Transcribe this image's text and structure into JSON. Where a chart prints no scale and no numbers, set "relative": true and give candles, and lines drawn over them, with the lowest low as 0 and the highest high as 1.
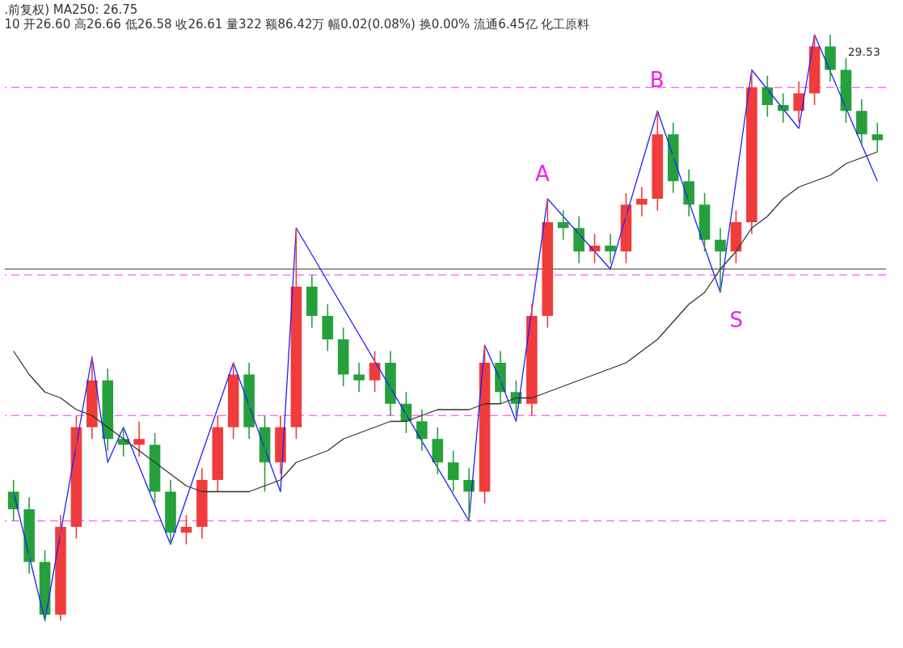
{
  "chart_data": {
    "type": "candlestick",
    "relative": true,
    "title": ".前复权) MA250: 26.75",
    "subtitle": "10 开26.60 高26.66 低26.58 收26.61 量322 额86.42万 幅0.02(0.08%) 换0.00% 流通6.45亿 化工原料",
    "categories": [
      null,
      null,
      null,
      null,
      null,
      null,
      null,
      null,
      null,
      null,
      null,
      null,
      null,
      null,
      null,
      null,
      null,
      null,
      null,
      null,
      null,
      null,
      null,
      null,
      null,
      null,
      null,
      null,
      null,
      null,
      null,
      null,
      null,
      null,
      null,
      null,
      null,
      null,
      null,
      null,
      null,
      null,
      null,
      null,
      null,
      null,
      null,
      null,
      null,
      null,
      null,
      null,
      null,
      null,
      null,
      null
    ],
    "ohlc": [
      [
        0.22,
        0.24,
        0.17,
        0.19
      ],
      [
        0.19,
        0.21,
        0.08,
        0.1
      ],
      [
        0.1,
        0.12,
        0,
        0.01
      ],
      [
        0.01,
        0.18,
        0,
        0.16
      ],
      [
        0.16,
        0.35,
        0.14,
        0.33
      ],
      [
        0.33,
        0.45,
        0.31,
        0.41
      ],
      [
        0.41,
        0.43,
        0.29,
        0.31
      ],
      [
        0.31,
        0.33,
        0.28,
        0.3
      ],
      [
        0.3,
        0.34,
        0.28,
        0.31
      ],
      [
        0.3,
        0.32,
        0.2,
        0.22
      ],
      [
        0.22,
        0.24,
        0.13,
        0.15
      ],
      [
        0.15,
        0.18,
        0.13,
        0.16
      ],
      [
        0.16,
        0.26,
        0.14,
        0.24
      ],
      [
        0.24,
        0.35,
        0.22,
        0.33
      ],
      [
        0.33,
        0.44,
        0.31,
        0.42
      ],
      [
        0.42,
        0.44,
        0.31,
        0.33
      ],
      [
        0.33,
        0.35,
        0.22,
        0.27
      ],
      [
        0.27,
        0.35,
        0.25,
        0.33
      ],
      [
        0.33,
        0.67,
        0.31,
        0.57
      ],
      [
        0.57,
        0.59,
        0.5,
        0.52
      ],
      [
        0.52,
        0.54,
        0.46,
        0.48
      ],
      [
        0.48,
        0.5,
        0.4,
        0.42
      ],
      [
        0.42,
        0.44,
        0.39,
        0.41
      ],
      [
        0.41,
        0.46,
        0.39,
        0.44
      ],
      [
        0.44,
        0.46,
        0.35,
        0.37
      ],
      [
        0.37,
        0.39,
        0.32,
        0.34
      ],
      [
        0.34,
        0.36,
        0.29,
        0.31
      ],
      [
        0.31,
        0.33,
        0.25,
        0.27
      ],
      [
        0.27,
        0.29,
        0.22,
        0.24
      ],
      [
        0.24,
        0.26,
        0.17,
        0.22
      ],
      [
        0.22,
        0.47,
        0.2,
        0.44
      ],
      [
        0.44,
        0.46,
        0.37,
        0.39
      ],
      [
        0.39,
        0.41,
        0.35,
        0.37
      ],
      [
        0.37,
        0.54,
        0.35,
        0.52
      ],
      [
        0.52,
        0.72,
        0.5,
        0.68
      ],
      [
        0.68,
        0.7,
        0.65,
        0.67
      ],
      [
        0.67,
        0.69,
        0.61,
        0.63
      ],
      [
        0.63,
        0.66,
        0.61,
        0.64
      ],
      [
        0.64,
        0.66,
        0.61,
        0.63
      ],
      [
        0.63,
        0.73,
        0.61,
        0.71
      ],
      [
        0.71,
        0.74,
        0.69,
        0.72
      ],
      [
        0.72,
        0.87,
        0.7,
        0.83
      ],
      [
        0.83,
        0.85,
        0.73,
        0.75
      ],
      [
        0.75,
        0.77,
        0.69,
        0.71
      ],
      [
        0.71,
        0.73,
        0.63,
        0.65
      ],
      [
        0.65,
        0.67,
        0.56,
        0.63
      ],
      [
        0.63,
        0.7,
        0.61,
        0.68
      ],
      [
        0.68,
        0.94,
        0.66,
        0.91
      ],
      [
        0.91,
        0.93,
        0.86,
        0.88
      ],
      [
        0.88,
        0.9,
        0.85,
        0.87
      ],
      [
        0.87,
        0.92,
        0.85,
        0.9
      ],
      [
        0.9,
        1.0,
        0.88,
        0.98
      ],
      [
        0.98,
        1.0,
        0.92,
        0.94
      ],
      [
        0.94,
        0.96,
        0.85,
        0.87
      ],
      [
        0.87,
        0.89,
        0.81,
        0.83
      ],
      [
        0.83,
        0.85,
        0.8,
        0.82
      ]
    ],
    "colors": [
      "#26a03c",
      "#26a03c",
      "#26a03c",
      "#f03c3c",
      "#f03c3c",
      "#f03c3c",
      "#26a03c",
      "#26a03c",
      "#f03c3c",
      "#26a03c",
      "#26a03c",
      "#f03c3c",
      "#f03c3c",
      "#f03c3c",
      "#f03c3c",
      "#26a03c",
      "#26a03c",
      "#f03c3c",
      "#f03c3c",
      "#26a03c",
      "#26a03c",
      "#26a03c",
      "#26a03c",
      "#f03c3c",
      "#26a03c",
      "#26a03c",
      "#26a03c",
      "#26a03c",
      "#26a03c",
      "#26a03c",
      "#f03c3c",
      "#26a03c",
      "#26a03c",
      "#f03c3c",
      "#f03c3c",
      "#26a03c",
      "#26a03c",
      "#f03c3c",
      "#26a03c",
      "#f03c3c",
      "#f03c3c",
      "#f03c3c",
      "#26a03c",
      "#26a03c",
      "#26a03c",
      "#26a03c",
      "#f03c3c",
      "#f03c3c",
      "#26a03c",
      "#26a03c",
      "#f03c3c",
      "#f03c3c",
      "#26a03c",
      "#26a03c",
      "#26a03c",
      "#26a03c"
    ],
    "series": [
      {
        "type": "line",
        "color": "#333333",
        "values": [
          0.46,
          0.42,
          0.39,
          0.38,
          0.36,
          0.35,
          0.33,
          0.31,
          0.29,
          0.27,
          0.25,
          0.23,
          0.22,
          0.22,
          0.22,
          0.22,
          0.23,
          0.24,
          0.27,
          0.28,
          0.29,
          0.31,
          0.32,
          0.33,
          0.34,
          0.34,
          0.35,
          0.36,
          0.36,
          0.36,
          0.37,
          0.37,
          0.38,
          0.38,
          0.39,
          0.4,
          0.41,
          0.42,
          0.43,
          0.44,
          0.46,
          0.48,
          0.51,
          0.54,
          0.56,
          0.6,
          0.63,
          0.67,
          0.69,
          0.72,
          0.74,
          0.75,
          0.76,
          0.78,
          0.79,
          0.8
        ]
      },
      {
        "type": "line",
        "color": "#1f1fff",
        "values": [
          0.22,
          null,
          0,
          null,
          null,
          0.45,
          0.27,
          0.33,
          null,
          null,
          0.13,
          null,
          null,
          null,
          0.44,
          null,
          null,
          0.22,
          0.67,
          null,
          null,
          null,
          null,
          null,
          null,
          null,
          null,
          null,
          null,
          0.17,
          0.47,
          0.41,
          0.34,
          null,
          0.72,
          null,
          null,
          null,
          0.6,
          null,
          null,
          0.87,
          null,
          null,
          null,
          0.56,
          null,
          0.94,
          null,
          null,
          0.84,
          1.0,
          null,
          null,
          null,
          0.75
        ]
      }
    ],
    "ref_lines": [
      {
        "axis": "y",
        "value": 0.6,
        "color": "#333333",
        "line_style": "solid"
      },
      {
        "axis": "y",
        "value": 0.59,
        "color": "#ff33ff",
        "line_style": "dashed"
      },
      {
        "axis": "y",
        "value": 0.17,
        "color": "#ff33ff",
        "line_style": "dashed"
      },
      {
        "axis": "y",
        "value": 0.91,
        "color": "#ff33ff",
        "line_style": "dashed"
      },
      {
        "axis": "y",
        "value": 0.35,
        "color": "#ff33ff",
        "line_style": "dashed"
      }
    ],
    "annotations": [
      "A",
      "B",
      "S",
      "29.53"
    ]
  }
}
